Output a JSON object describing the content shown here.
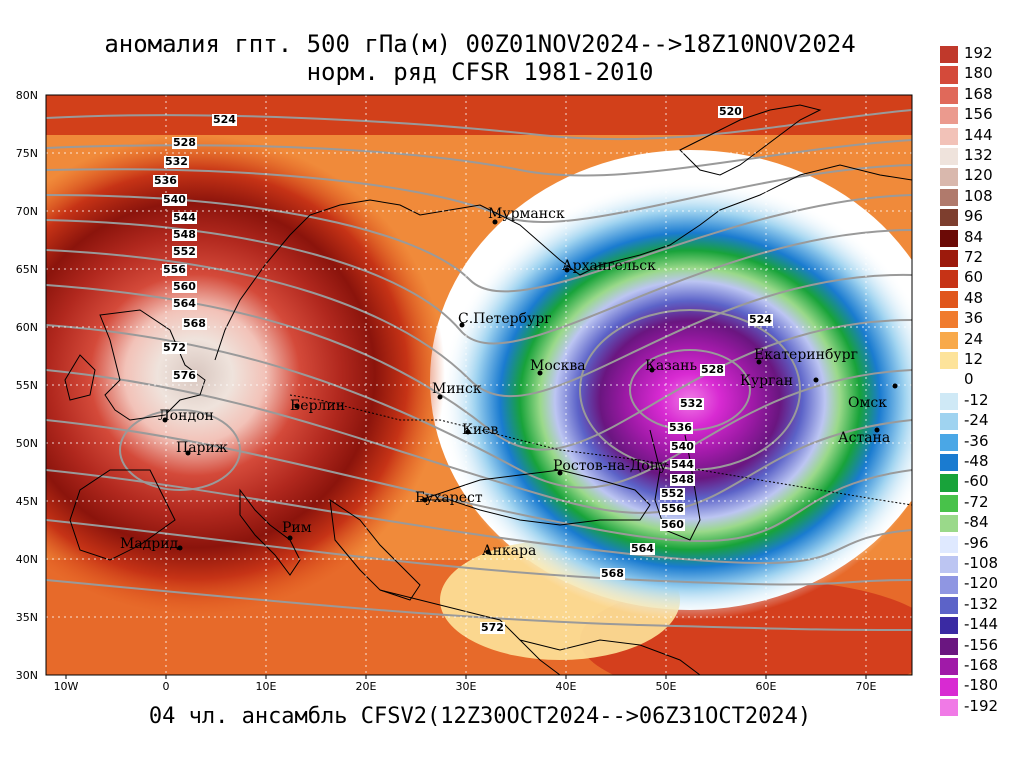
{
  "title": {
    "line1": "аномалия гпт. 500 гПа(м) 00Z01NOV2024-->18Z10NOV2024",
    "line2": "норм. ряд CFSR 1981-2010"
  },
  "bottom_title": "04 чл. ансамбль CFSV2(12Z30OCT2024-->06Z31OCT2024)",
  "map": {
    "y_axis": [
      "80N",
      "75N",
      "70N",
      "65N",
      "60N",
      "55N",
      "50N",
      "45N",
      "40N",
      "35N",
      "30N"
    ],
    "x_axis": [
      "10W",
      "0",
      "10E",
      "20E",
      "30E",
      "40E",
      "50E",
      "60E",
      "70E"
    ],
    "cities": [
      {
        "name": "Мурманск"
      },
      {
        "name": "Архангельск"
      },
      {
        "name": "С.Петербург"
      },
      {
        "name": "Москва"
      },
      {
        "name": "Казань"
      },
      {
        "name": "Екатеринбург"
      },
      {
        "name": "Курган"
      },
      {
        "name": "Омск"
      },
      {
        "name": "Астана"
      },
      {
        "name": "Минск"
      },
      {
        "name": "Киев"
      },
      {
        "name": "Ростов-на-Дону"
      },
      {
        "name": "Бухарест"
      },
      {
        "name": "Анкара"
      },
      {
        "name": "Берлин"
      },
      {
        "name": "Лондон"
      },
      {
        "name": "Париж"
      },
      {
        "name": "Рим"
      },
      {
        "name": "Мадрид"
      }
    ],
    "contour_labels": [
      "524",
      "528",
      "532",
      "536",
      "540",
      "544",
      "548",
      "552",
      "556",
      "560",
      "564",
      "568",
      "572",
      "576",
      "520",
      "524",
      "528",
      "532",
      "536",
      "540",
      "544",
      "548",
      "552",
      "556",
      "560",
      "564",
      "568",
      "572"
    ],
    "anomalies": {
      "positive_center": "West Europe / North Sea, > +192 m",
      "negative_center": "Volga region near Kazan, < -192 m"
    }
  },
  "legend": {
    "labels": [
      "192",
      "180",
      "168",
      "156",
      "144",
      "132",
      "120",
      "108",
      "96",
      "84",
      "72",
      "60",
      "48",
      "36",
      "24",
      "12",
      "0",
      "-12",
      "-24",
      "-36",
      "-48",
      "-60",
      "-72",
      "-84",
      "-96",
      "-108",
      "-120",
      "-132",
      "-144",
      "-156",
      "-168",
      "-180",
      "-192"
    ],
    "colors": [
      "#c0392b",
      "#d44a3a",
      "#e0695a",
      "#eb9a8e",
      "#f2c2b8",
      "#efe3dc",
      "#d9b8ad",
      "#b07a6c",
      "#7d3e2e",
      "#6b0a06",
      "#9c1a0c",
      "#c63316",
      "#e0561c",
      "#f07b2e",
      "#f8a94a",
      "#fde39a",
      "#ffffff",
      "#cfe9f6",
      "#9fd3f0",
      "#4aa7e6",
      "#1a7bd0",
      "#18a33a",
      "#48c24a",
      "#9ad98a",
      "#dfe9ff",
      "#bcc5f2",
      "#8f96e2",
      "#5c63c8",
      "#3a2aa3",
      "#6a1680",
      "#a01aa8",
      "#d82ad2",
      "#f07ae6"
    ]
  }
}
